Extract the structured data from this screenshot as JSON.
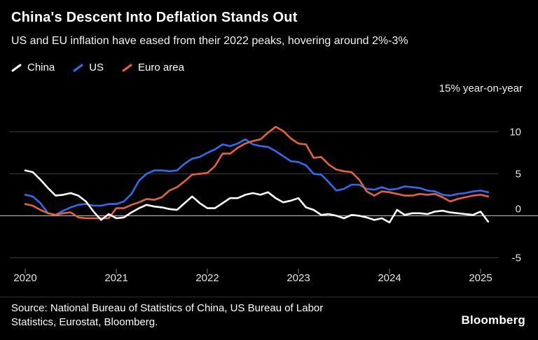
{
  "header": {
    "title": "China's Descent Into Deflation Stands Out",
    "subtitle": "US and EU inflation have eased from their 2022 peaks, hovering around 2%-3%"
  },
  "source": {
    "line1": "Source: National Bureau of Statistics of China, US Bureau of Labor",
    "line2": "Statistics, Eurostat, Bloomberg."
  },
  "branding": {
    "logo": "Bloomberg"
  },
  "chart_data": {
    "type": "line",
    "title": "China's Descent Into Deflation Stands Out",
    "subtitle": "US and EU inflation have eased from their 2022 peaks, hovering around 2%-3%",
    "unit_label": "15% year-on-year",
    "legend_position": "top-left",
    "grid": "horizontal",
    "x_start_year": 2020,
    "x_step": "monthly",
    "x_ticks": [
      2020,
      2021,
      2022,
      2023,
      2024,
      2025
    ],
    "y_ticks": [
      10,
      5,
      0,
      -5
    ],
    "xlim": [
      2020,
      2025.6
    ],
    "ylim": [
      -6.3,
      14.7
    ],
    "draw_order": [
      1,
      2,
      0
    ],
    "colors": {
      "china": "#ffffff",
      "us": "#2e6cf4",
      "euro_area": "#e8613b"
    },
    "series": [
      {
        "name": "China",
        "color": "#ffffff",
        "values": [
          5.4,
          5.2,
          4.3,
          3.3,
          2.4,
          2.5,
          2.7,
          2.4,
          1.7,
          0.5,
          -0.5,
          0.2,
          -0.3,
          -0.2,
          0.4,
          0.9,
          1.3,
          1.1,
          1.0,
          0.8,
          0.7,
          1.5,
          2.3,
          1.5,
          0.9,
          0.9,
          1.5,
          2.1,
          2.1,
          2.5,
          2.7,
          2.5,
          2.8,
          2.1,
          1.6,
          1.8,
          2.1,
          1.0,
          0.7,
          0.1,
          0.2,
          0.0,
          -0.3,
          0.1,
          0.0,
          -0.2,
          -0.5,
          -0.3,
          -0.8,
          0.7,
          0.1,
          0.3,
          0.3,
          0.2,
          0.5,
          0.6,
          0.4,
          0.3,
          0.2,
          0.1,
          0.5,
          -0.7
        ]
      },
      {
        "name": "US",
        "color": "#2e6cf4",
        "values": [
          2.5,
          2.3,
          1.5,
          0.3,
          0.1,
          0.6,
          1.0,
          1.3,
          1.4,
          1.2,
          1.2,
          1.4,
          1.4,
          1.7,
          2.6,
          4.2,
          5.0,
          5.4,
          5.4,
          5.3,
          5.4,
          6.2,
          6.8,
          7.0,
          7.5,
          7.9,
          8.5,
          8.3,
          8.6,
          9.1,
          8.5,
          8.3,
          8.2,
          7.7,
          7.1,
          6.5,
          6.4,
          6.0,
          5.0,
          4.9,
          4.0,
          3.0,
          3.2,
          3.7,
          3.7,
          3.2,
          3.1,
          3.4,
          3.1,
          3.2,
          3.5,
          3.4,
          3.3,
          3.0,
          2.9,
          2.5,
          2.4,
          2.6,
          2.7,
          2.9,
          3.0,
          2.8
        ]
      },
      {
        "name": "Euro area",
        "color": "#e8613b",
        "values": [
          1.4,
          1.2,
          0.7,
          0.3,
          0.1,
          0.3,
          0.4,
          -0.2,
          -0.3,
          -0.3,
          -0.3,
          -0.3,
          0.9,
          0.9,
          1.3,
          1.6,
          2.0,
          1.9,
          2.2,
          3.0,
          3.4,
          4.1,
          4.9,
          5.0,
          5.1,
          5.9,
          7.4,
          7.4,
          8.1,
          8.6,
          8.9,
          9.1,
          9.9,
          10.6,
          10.1,
          9.2,
          8.6,
          8.5,
          6.9,
          7.0,
          6.1,
          5.5,
          5.3,
          5.2,
          4.3,
          2.9,
          2.4,
          2.9,
          2.8,
          2.6,
          2.4,
          2.4,
          2.6,
          2.5,
          2.6,
          2.2,
          1.7,
          2.0,
          2.2,
          2.4,
          2.5,
          2.3
        ]
      }
    ]
  }
}
